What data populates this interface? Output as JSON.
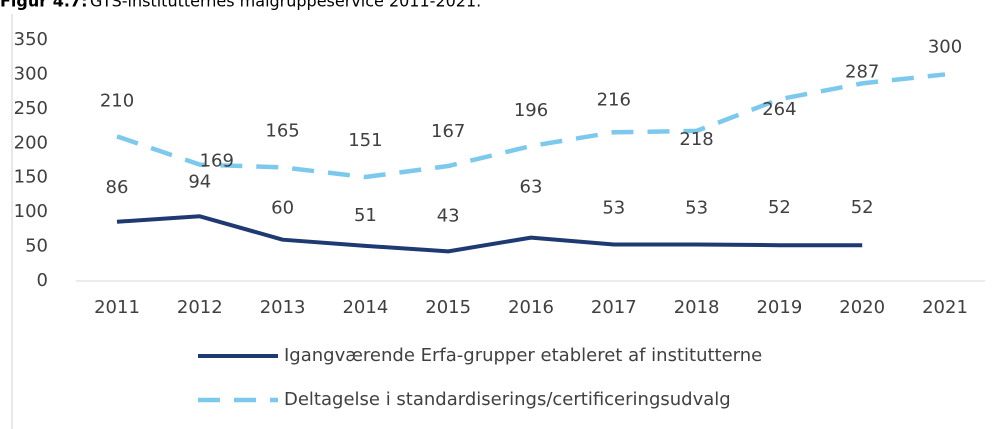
{
  "chart_data": {
    "type": "line",
    "title_prefix": "Figur 4.7:",
    "title": "GTS-institutternes målgruppeservice 2011-2021.",
    "categories": [
      "2011",
      "2012",
      "2013",
      "2014",
      "2015",
      "2016",
      "2017",
      "2018",
      "2019",
      "2020",
      "2021"
    ],
    "series": [
      {
        "name": "Igangværende Erfa-grupper etableret af institutterne",
        "color": "#1f3a73",
        "dashed": false,
        "values": [
          86,
          94,
          60,
          51,
          43,
          63,
          53,
          53,
          52,
          52,
          null
        ]
      },
      {
        "name": "Deltagelse i standardiserings/certificeringsudvalg",
        "color": "#7dc9ee",
        "dashed": true,
        "values": [
          210,
          169,
          165,
          151,
          167,
          196,
          216,
          218,
          264,
          287,
          300
        ]
      }
    ],
    "ylim": [
      0,
      350
    ],
    "yticks": [
      0,
      50,
      100,
      150,
      200,
      250,
      300,
      350
    ],
    "grid": false,
    "legend": "bottom"
  }
}
